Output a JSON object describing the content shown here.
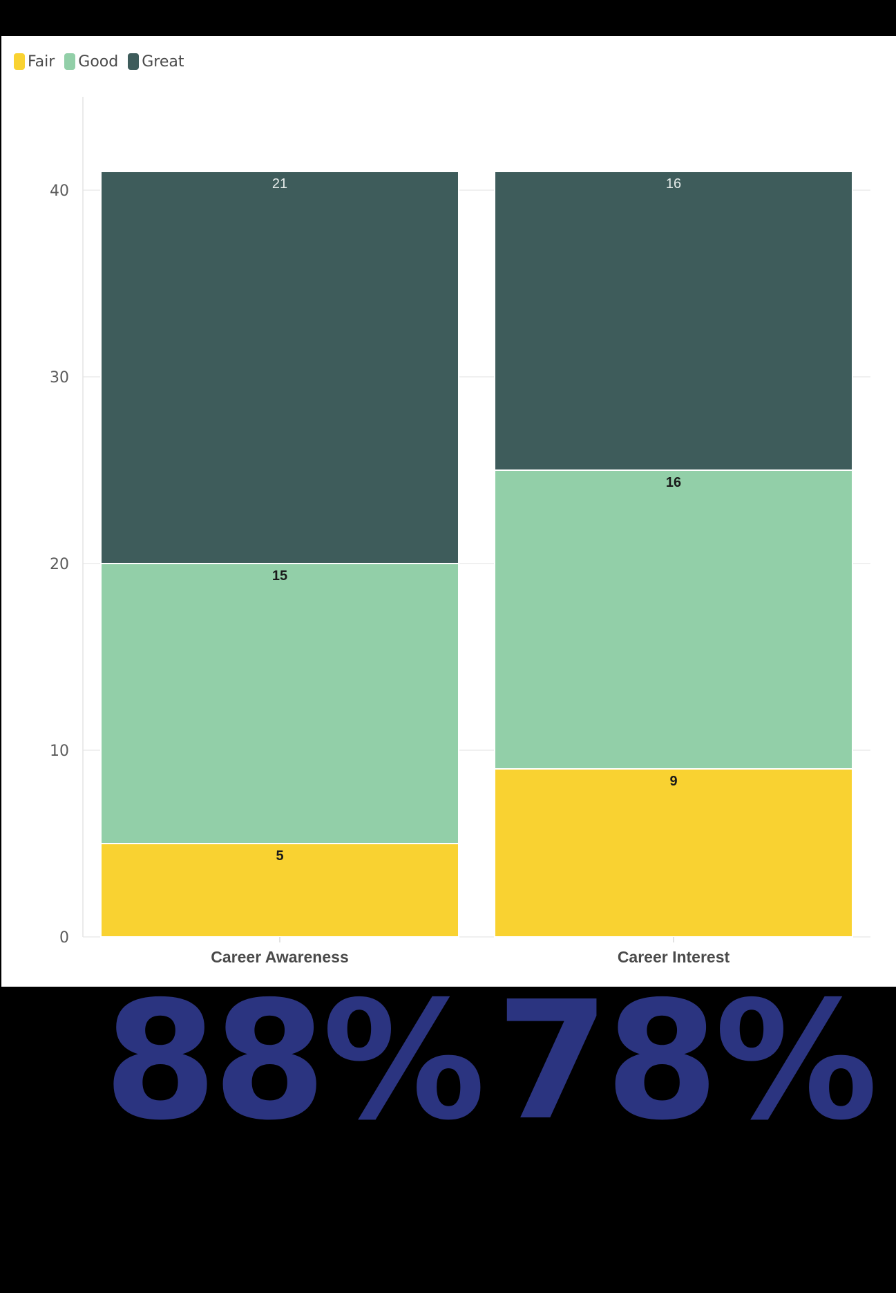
{
  "legend": [
    {
      "label": "Fair",
      "color": "#F9D231"
    },
    {
      "label": "Good",
      "color": "#92CFA8"
    },
    {
      "label": "Great",
      "color": "#3E5C5B"
    }
  ],
  "chart_data": {
    "type": "bar",
    "stacked": true,
    "categories": [
      "Career Awareness",
      "Career Interest"
    ],
    "series": [
      {
        "name": "Fair",
        "values": [
          5,
          9
        ],
        "color": "#F9D231",
        "label_color": "#1a1a1a"
      },
      {
        "name": "Good",
        "values": [
          15,
          16
        ],
        "color": "#92CFA8",
        "label_color": "#1a1a1a"
      },
      {
        "name": "Great",
        "values": [
          21,
          16
        ],
        "color": "#3E5C5B",
        "label_color": "#e6ecea"
      }
    ],
    "ylim": [
      0,
      45
    ],
    "yticks": [
      0,
      10,
      20,
      30,
      40
    ],
    "grid": true,
    "legend_position": "top-left",
    "title": "",
    "xlabel": "",
    "ylabel": ""
  },
  "stats": [
    {
      "value": "88%",
      "color": "#2B3480"
    },
    {
      "value": "78%",
      "color": "#2B3480"
    }
  ]
}
